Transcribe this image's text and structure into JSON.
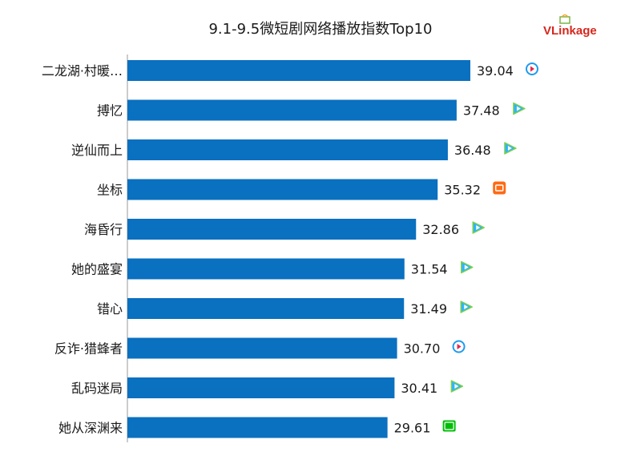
{
  "title": "9.1-9.5微短剧网络播放指数Top10",
  "brand": {
    "logo_text_v": "V",
    "logo_text_rest": "Linkage",
    "color": "#d7261c"
  },
  "colors": {
    "bar": "#0a70c0",
    "axis": "#9a9a9a",
    "text": "#1a1a1a"
  },
  "chart_data": {
    "type": "bar",
    "orientation": "horizontal",
    "title": "9.1-9.5微短剧网络播放指数Top10",
    "categories": [
      "二龙湖·村暖…",
      "搏忆",
      "逆仙而上",
      "坐标",
      "海昏行",
      "她的盛宴",
      "错心",
      "反诈·猎蜂者",
      "乱码迷局",
      "她从深渊来"
    ],
    "values": [
      39.04,
      37.48,
      36.48,
      35.32,
      32.86,
      31.54,
      31.49,
      30.7,
      30.41,
      29.61
    ],
    "value_labels": [
      "39.04",
      "37.48",
      "36.48",
      "35.32",
      "32.86",
      "31.54",
      "31.49",
      "30.70",
      "30.41",
      "29.61"
    ],
    "platform_icons": [
      "youku-icon",
      "tencent-video-icon",
      "tencent-video-icon",
      "mango-tv-icon",
      "tencent-video-icon",
      "tencent-video-icon",
      "tencent-video-icon",
      "youku-icon",
      "tencent-video-icon",
      "iqiyi-icon"
    ],
    "xlim": [
      0,
      39.04
    ],
    "grid": false,
    "legend": "none"
  }
}
